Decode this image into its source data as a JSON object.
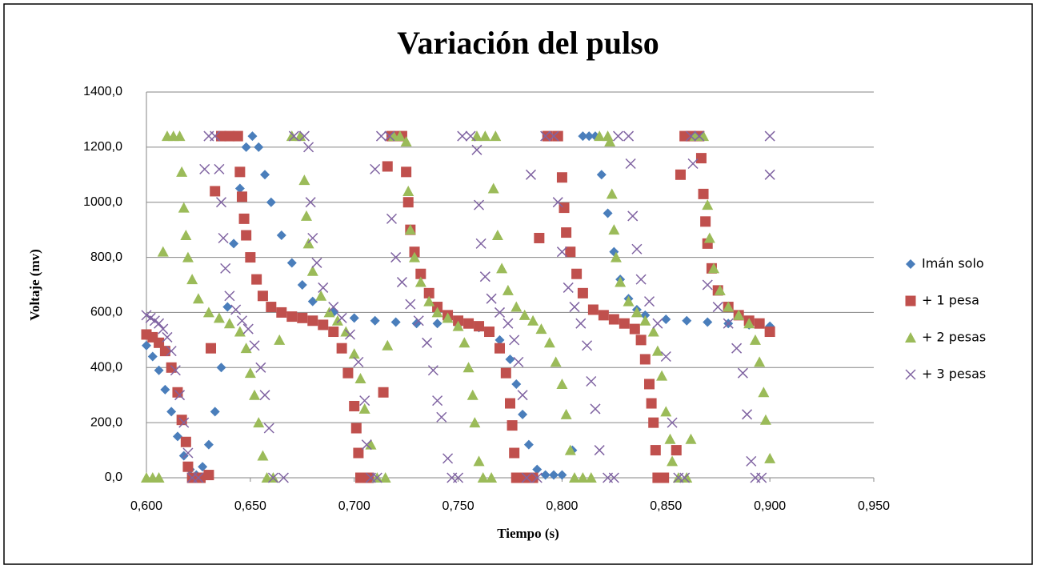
{
  "chart_data": {
    "type": "scatter",
    "title": "Variación del pulso",
    "x_label": "Tiempo  (s)",
    "y_label": "Voltaje  (mv)",
    "xlim": [
      0.6,
      0.95
    ],
    "ylim": [
      0,
      1400
    ],
    "xticks": [
      {
        "value": 0.6,
        "label": "0,600"
      },
      {
        "value": 0.65,
        "label": "0,650"
      },
      {
        "value": 0.7,
        "label": "0,700"
      },
      {
        "value": 0.75,
        "label": "0,750"
      },
      {
        "value": 0.8,
        "label": "0,800"
      },
      {
        "value": 0.85,
        "label": "0,850"
      },
      {
        "value": 0.9,
        "label": "0,900"
      },
      {
        "value": 0.95,
        "label": "0,950"
      }
    ],
    "yticks": [
      {
        "value": 0,
        "label": "0,0"
      },
      {
        "value": 200,
        "label": "200,0"
      },
      {
        "value": 400,
        "label": "400,0"
      },
      {
        "value": 600,
        "label": "600,0"
      },
      {
        "value": 800,
        "label": "800,0"
      },
      {
        "value": 1000,
        "label": "1000,0"
      },
      {
        "value": 1200,
        "label": "1200,0"
      },
      {
        "value": 1400,
        "label": "1400,0"
      }
    ],
    "grid": true,
    "legend": "right",
    "series": [
      {
        "name": "Imán solo",
        "color": "#4a7ebb",
        "marker": "diamond",
        "x": [
          0.6,
          0.603,
          0.606,
          0.609,
          0.612,
          0.615,
          0.618,
          0.621,
          0.624,
          0.627,
          0.63,
          0.633,
          0.636,
          0.639,
          0.642,
          0.645,
          0.648,
          0.651,
          0.654,
          0.657,
          0.66,
          0.665,
          0.67,
          0.675,
          0.68,
          0.69,
          0.7,
          0.71,
          0.72,
          0.73,
          0.74,
          0.75,
          0.76,
          0.765,
          0.77,
          0.775,
          0.778,
          0.781,
          0.784,
          0.788,
          0.792,
          0.796,
          0.8,
          0.805,
          0.81,
          0.813,
          0.816,
          0.819,
          0.822,
          0.825,
          0.828,
          0.832,
          0.836,
          0.84,
          0.85,
          0.86,
          0.87,
          0.88,
          0.89,
          0.9
        ],
        "values": [
          480,
          440,
          390,
          320,
          240,
          150,
          80,
          30,
          10,
          40,
          120,
          240,
          400,
          620,
          850,
          1050,
          1200,
          1240,
          1200,
          1100,
          1000,
          880,
          780,
          700,
          640,
          600,
          580,
          570,
          565,
          560,
          560,
          555,
          545,
          530,
          500,
          430,
          340,
          230,
          120,
          30,
          10,
          10,
          10,
          100,
          1240,
          1240,
          1240,
          1100,
          960,
          820,
          720,
          650,
          610,
          590,
          575,
          570,
          565,
          560,
          555,
          550
        ]
      },
      {
        "name": "+ 1 pesa",
        "color": "#c0504d",
        "marker": "square",
        "x": [
          0.6,
          0.603,
          0.606,
          0.609,
          0.612,
          0.615,
          0.617,
          0.619,
          0.62,
          0.622,
          0.626,
          0.63,
          0.631,
          0.633,
          0.636,
          0.64,
          0.644,
          0.645,
          0.646,
          0.647,
          0.648,
          0.65,
          0.653,
          0.656,
          0.66,
          0.665,
          0.67,
          0.675,
          0.68,
          0.685,
          0.69,
          0.694,
          0.697,
          0.7,
          0.701,
          0.702,
          0.703,
          0.707,
          0.714,
          0.716,
          0.718,
          0.723,
          0.725,
          0.726,
          0.727,
          0.729,
          0.732,
          0.736,
          0.74,
          0.745,
          0.75,
          0.755,
          0.76,
          0.765,
          0.77,
          0.773,
          0.775,
          0.776,
          0.777,
          0.778,
          0.782,
          0.786,
          0.789,
          0.793,
          0.798,
          0.8,
          0.801,
          0.802,
          0.804,
          0.807,
          0.81,
          0.815,
          0.82,
          0.825,
          0.83,
          0.835,
          0.838,
          0.84,
          0.842,
          0.843,
          0.844,
          0.845,
          0.846,
          0.849,
          0.855,
          0.857,
          0.859,
          0.862,
          0.866,
          0.867,
          0.868,
          0.869,
          0.87,
          0.872,
          0.875,
          0.88,
          0.885,
          0.89,
          0.895,
          0.9
        ],
        "values": [
          520,
          510,
          490,
          460,
          400,
          310,
          210,
          130,
          40,
          0,
          0,
          10,
          470,
          1040,
          1240,
          1240,
          1240,
          1110,
          1020,
          940,
          880,
          800,
          720,
          660,
          620,
          600,
          585,
          580,
          570,
          555,
          530,
          470,
          380,
          260,
          180,
          90,
          0,
          0,
          310,
          1130,
          1240,
          1240,
          1110,
          1000,
          900,
          820,
          740,
          670,
          620,
          590,
          570,
          560,
          550,
          530,
          470,
          380,
          270,
          190,
          90,
          0,
          0,
          0,
          870,
          1240,
          1240,
          1090,
          980,
          890,
          820,
          740,
          670,
          610,
          590,
          575,
          560,
          540,
          500,
          430,
          340,
          270,
          200,
          100,
          0,
          0,
          100,
          1100,
          1240,
          1240,
          1240,
          1160,
          1030,
          930,
          850,
          760,
          680,
          620,
          590,
          570,
          560,
          530
        ]
      },
      {
        "name": "+ 2 pesas",
        "color": "#9bbb59",
        "marker": "triangle",
        "x": [
          0.6,
          0.603,
          0.606,
          0.608,
          0.61,
          0.613,
          0.616,
          0.617,
          0.618,
          0.619,
          0.62,
          0.622,
          0.625,
          0.63,
          0.635,
          0.64,
          0.645,
          0.648,
          0.65,
          0.652,
          0.654,
          0.656,
          0.658,
          0.661,
          0.664,
          0.67,
          0.674,
          0.676,
          0.677,
          0.678,
          0.68,
          0.684,
          0.688,
          0.692,
          0.696,
          0.7,
          0.703,
          0.705,
          0.708,
          0.711,
          0.715,
          0.716,
          0.719,
          0.722,
          0.725,
          0.726,
          0.727,
          0.729,
          0.732,
          0.736,
          0.74,
          0.745,
          0.75,
          0.753,
          0.755,
          0.757,
          0.758,
          0.76,
          0.762,
          0.766,
          0.767,
          0.759,
          0.763,
          0.768,
          0.769,
          0.771,
          0.774,
          0.778,
          0.782,
          0.786,
          0.79,
          0.794,
          0.797,
          0.8,
          0.802,
          0.804,
          0.806,
          0.81,
          0.814,
          0.818,
          0.822,
          0.823,
          0.824,
          0.825,
          0.826,
          0.828,
          0.832,
          0.836,
          0.84,
          0.844,
          0.846,
          0.848,
          0.85,
          0.852,
          0.853,
          0.856,
          0.86,
          0.862,
          0.864,
          0.868,
          0.87,
          0.871,
          0.873,
          0.876,
          0.88,
          0.885,
          0.89,
          0.893,
          0.895,
          0.897,
          0.898,
          0.9
        ],
        "values": [
          0,
          0,
          0,
          820,
          1240,
          1240,
          1240,
          1110,
          980,
          880,
          800,
          720,
          650,
          600,
          580,
          560,
          530,
          470,
          380,
          300,
          200,
          80,
          0,
          0,
          500,
          1240,
          1240,
          1080,
          950,
          850,
          750,
          660,
          600,
          570,
          530,
          450,
          360,
          250,
          120,
          0,
          0,
          480,
          1240,
          1240,
          1220,
          1040,
          900,
          800,
          710,
          640,
          600,
          580,
          550,
          490,
          400,
          300,
          200,
          60,
          0,
          0,
          1050,
          1240,
          1240,
          1240,
          880,
          760,
          680,
          620,
          590,
          570,
          540,
          490,
          420,
          340,
          230,
          100,
          0,
          0,
          0,
          1240,
          1240,
          1220,
          1030,
          900,
          800,
          710,
          640,
          600,
          570,
          530,
          460,
          370,
          240,
          140,
          60,
          0,
          0,
          140,
          1240,
          1240,
          990,
          870,
          760,
          680,
          620,
          590,
          560,
          500,
          420,
          310,
          210,
          70
        ]
      },
      {
        "name": "+ 3 pesas",
        "color": "#8064a2",
        "marker": "x",
        "x": [
          0.6,
          0.602,
          0.604,
          0.606,
          0.608,
          0.61,
          0.612,
          0.614,
          0.616,
          0.618,
          0.62,
          0.622,
          0.625,
          0.628,
          0.63,
          0.633,
          0.635,
          0.636,
          0.637,
          0.638,
          0.64,
          0.643,
          0.646,
          0.649,
          0.652,
          0.655,
          0.657,
          0.659,
          0.661,
          0.666,
          0.671,
          0.676,
          0.678,
          0.679,
          0.68,
          0.682,
          0.685,
          0.69,
          0.694,
          0.698,
          0.702,
          0.705,
          0.706,
          0.708,
          0.711,
          0.71,
          0.713,
          0.717,
          0.718,
          0.72,
          0.723,
          0.727,
          0.731,
          0.735,
          0.738,
          0.74,
          0.742,
          0.745,
          0.747,
          0.75,
          0.752,
          0.756,
          0.759,
          0.76,
          0.761,
          0.763,
          0.766,
          0.77,
          0.774,
          0.777,
          0.779,
          0.781,
          0.783,
          0.788,
          0.785,
          0.792,
          0.796,
          0.798,
          0.8,
          0.803,
          0.806,
          0.809,
          0.812,
          0.814,
          0.816,
          0.818,
          0.822,
          0.825,
          0.827,
          0.832,
          0.833,
          0.834,
          0.836,
          0.838,
          0.842,
          0.846,
          0.85,
          0.853,
          0.856,
          0.859,
          0.862,
          0.866,
          0.863,
          0.87,
          0.875,
          0.88,
          0.884,
          0.887,
          0.889,
          0.891,
          0.893,
          0.896,
          0.9,
          0.9
        ],
        "values": [
          590,
          580,
          570,
          560,
          540,
          510,
          460,
          390,
          300,
          200,
          90,
          0,
          0,
          1120,
          1240,
          1240,
          1120,
          1000,
          870,
          760,
          660,
          610,
          570,
          540,
          480,
          400,
          300,
          180,
          0,
          0,
          1240,
          1240,
          1200,
          1000,
          870,
          780,
          690,
          620,
          580,
          520,
          420,
          280,
          120,
          0,
          0,
          1120,
          1240,
          1240,
          940,
          800,
          710,
          630,
          570,
          490,
          390,
          280,
          220,
          70,
          0,
          0,
          1240,
          1240,
          1190,
          990,
          850,
          730,
          650,
          600,
          560,
          500,
          420,
          300,
          0,
          0,
          1100,
          1240,
          1240,
          1000,
          820,
          690,
          620,
          560,
          480,
          350,
          250,
          100,
          0,
          0,
          1240,
          1240,
          1140,
          950,
          830,
          720,
          640,
          560,
          440,
          200,
          0,
          0,
          1240,
          1240,
          1140,
          700,
          620,
          560,
          470,
          380,
          230,
          60,
          0,
          0,
          1240,
          1100
        ]
      }
    ]
  }
}
